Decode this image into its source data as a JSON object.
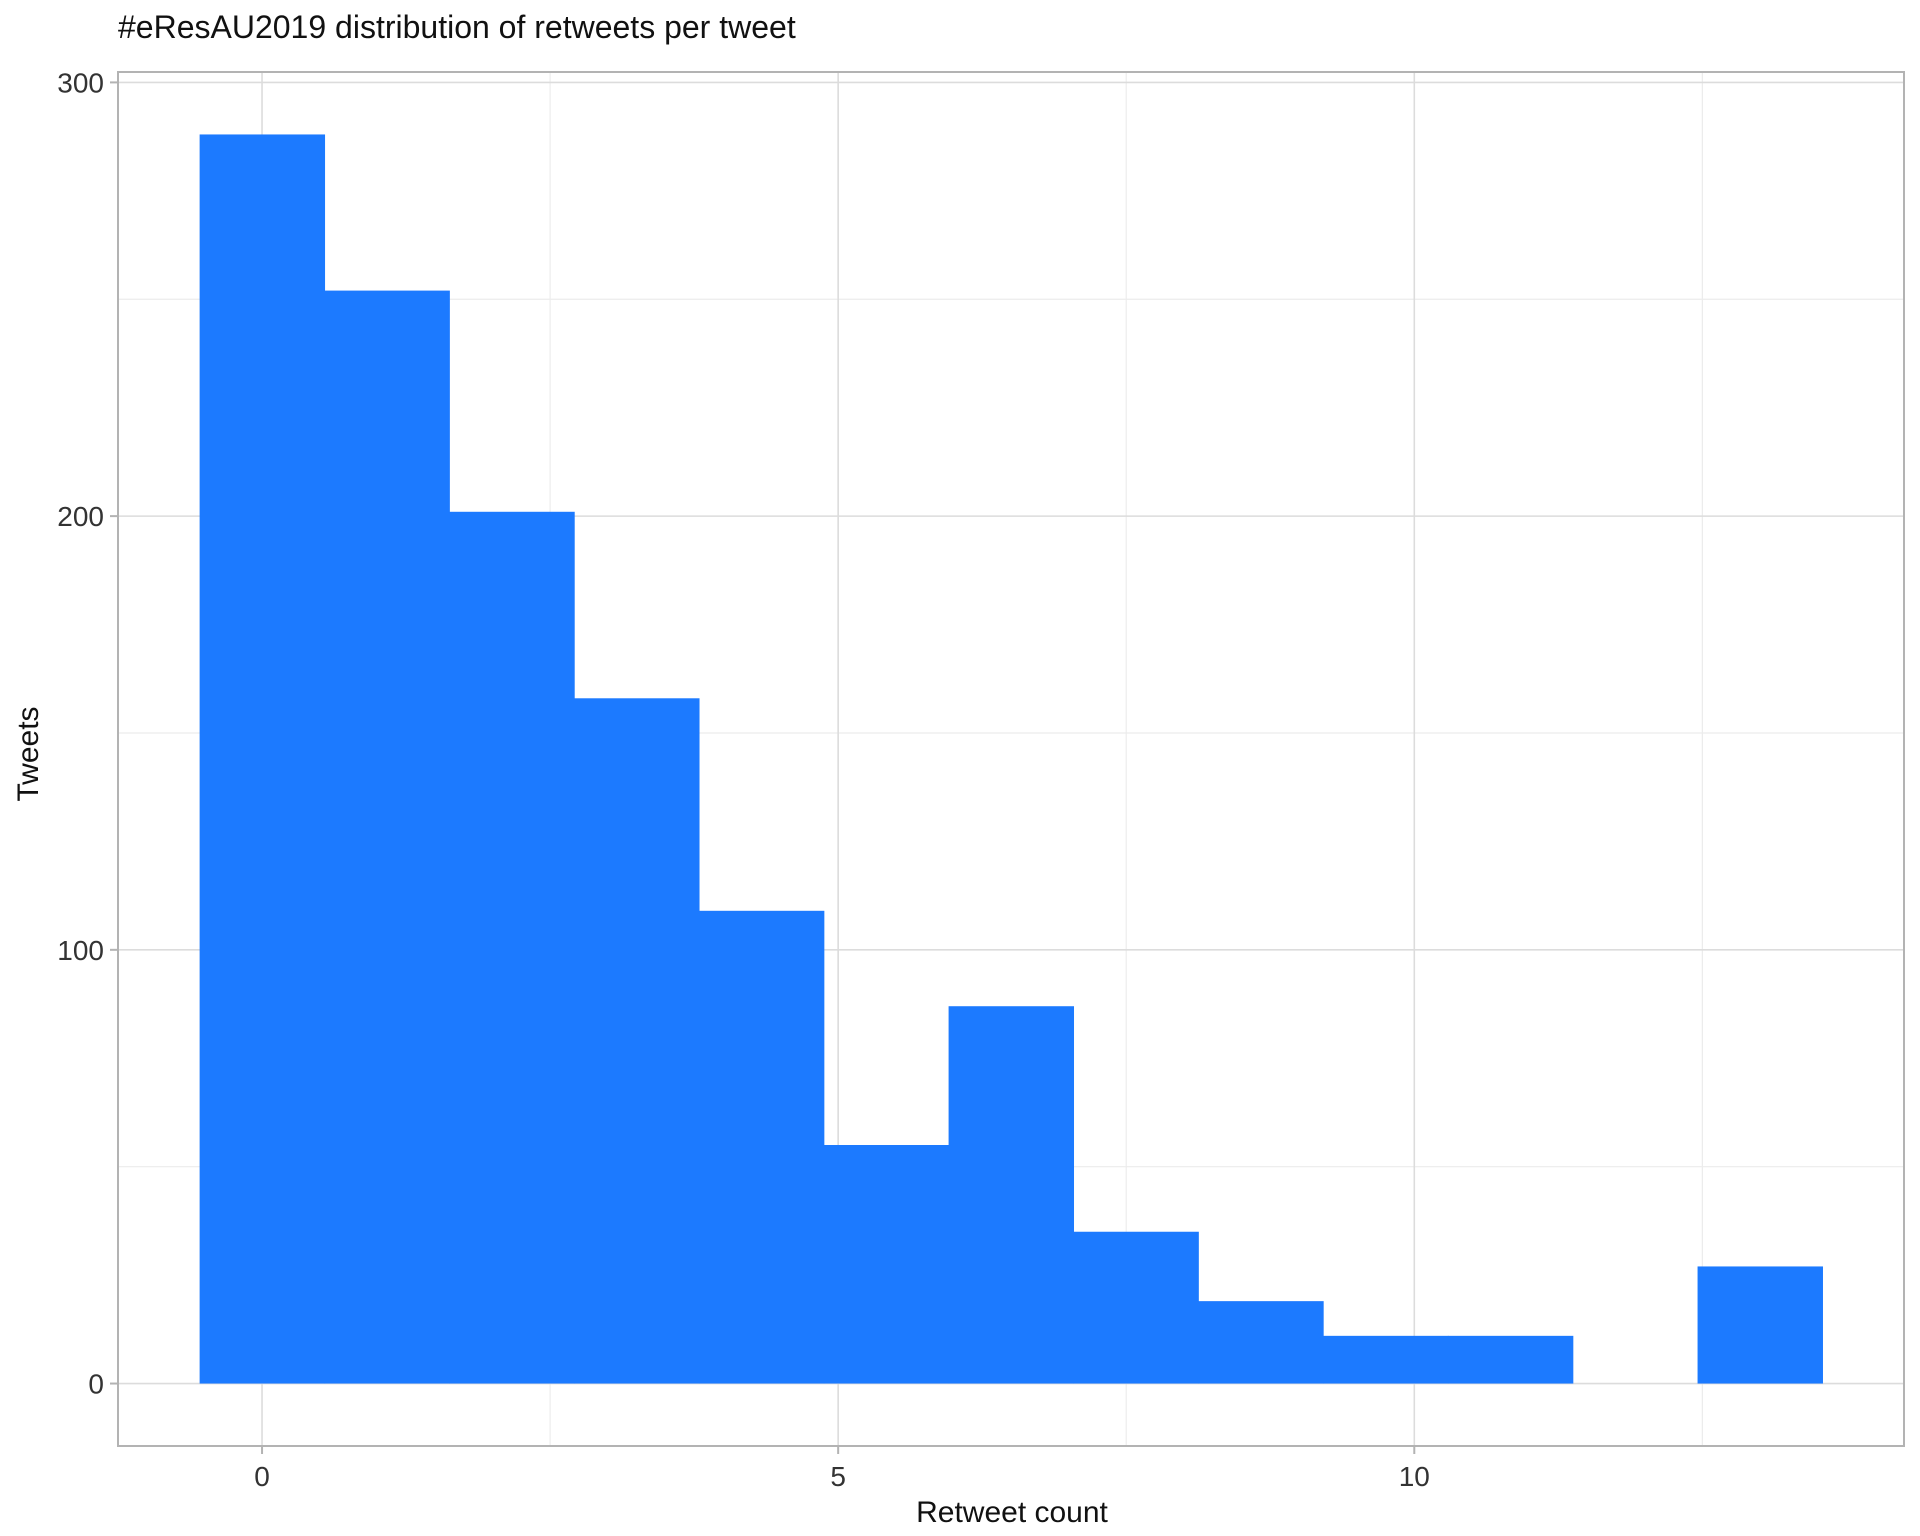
{
  "chart_data": {
    "type": "bar",
    "title": "#eResAU2019 distribution of retweets per tweet",
    "xlabel": "Retweet count",
    "ylabel": "Tweets",
    "bin_width": 1.0833,
    "bins": [
      {
        "center": 0.0,
        "count": 288
      },
      {
        "center": 1.0833,
        "count": 252
      },
      {
        "center": 2.1667,
        "count": 201
      },
      {
        "center": 3.25,
        "count": 158
      },
      {
        "center": 4.3333,
        "count": 109
      },
      {
        "center": 5.4167,
        "count": 55
      },
      {
        "center": 6.5,
        "count": 87
      },
      {
        "center": 7.5833,
        "count": 35
      },
      {
        "center": 8.6667,
        "count": 19
      },
      {
        "center": 9.75,
        "count": 11
      },
      {
        "center": 10.8333,
        "count": 11
      },
      {
        "center": 11.9167,
        "count": 0
      },
      {
        "center": 13.0,
        "count": 27
      }
    ],
    "xlim": [
      -1.25,
      14.25
    ],
    "ylim": [
      -14.4,
      302.4
    ],
    "x_ticks": [
      "0",
      "5",
      "10"
    ],
    "x_tick_values": [
      0,
      5,
      10
    ],
    "y_ticks": [
      "0",
      "100",
      "200",
      "300"
    ],
    "y_tick_values": [
      0,
      100,
      200,
      300
    ],
    "grid": true,
    "bar_color": "#1c7aff"
  }
}
